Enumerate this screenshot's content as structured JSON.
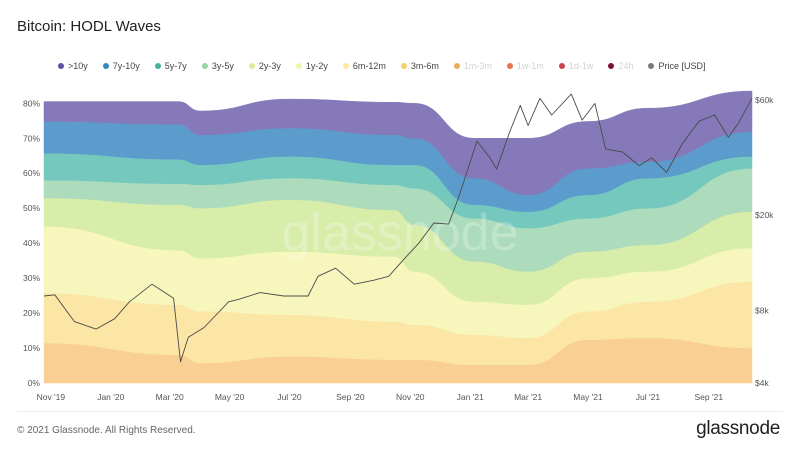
{
  "title": "Bitcoin: HODL Waves",
  "footer": {
    "copyright": "© 2021 Glassnode. All Rights Reserved.",
    "logo": "glassnode"
  },
  "watermark": "glassnode",
  "legend": [
    {
      "label": ">10y",
      "color": "#5e4fa2",
      "enabled": true
    },
    {
      "label": "7y-10y",
      "color": "#3288bd",
      "enabled": true
    },
    {
      "label": "5y-7y",
      "color": "#45b39d",
      "enabled": true
    },
    {
      "label": "3y-5y",
      "color": "#99d4a4",
      "enabled": true
    },
    {
      "label": "2y-3y",
      "color": "#d8ec9c",
      "enabled": true
    },
    {
      "label": "1y-2y",
      "color": "#eef7b0",
      "enabled": true
    },
    {
      "label": "6m-12m",
      "color": "#fbe7a0",
      "enabled": true
    },
    {
      "label": "3m-6m",
      "color": "#f6d16f",
      "enabled": true
    },
    {
      "label": "1m-3m",
      "color": "#f1a95f",
      "enabled": false
    },
    {
      "label": "1w-1m",
      "color": "#e8734f",
      "enabled": false
    },
    {
      "label": "1d-1w",
      "color": "#c7424f",
      "enabled": false
    },
    {
      "label": "24h",
      "color": "#7a0f3a",
      "enabled": false
    },
    {
      "label": "Price [USD]",
      "color": "#7a7a7a",
      "enabled": true
    }
  ],
  "chart_data": {
    "type": "area",
    "stacked": true,
    "title": "Bitcoin: HODL Waves",
    "x_ticks": [
      "Nov '19",
      "Jan '20",
      "Mar '20",
      "May '20",
      "Jul '20",
      "Sep '20",
      "Nov '20",
      "Jan '21",
      "Mar '21",
      "May '21",
      "Jul '21",
      "Sep '21"
    ],
    "x_tick_dates": [
      "2019-11-01",
      "2020-01-01",
      "2020-03-01",
      "2020-05-01",
      "2020-07-01",
      "2020-09-01",
      "2020-11-01",
      "2021-01-01",
      "2021-03-01",
      "2021-05-01",
      "2021-07-01",
      "2021-09-01"
    ],
    "xlim": [
      "2019-10-25",
      "2021-10-15"
    ],
    "y_left": {
      "ticks": [
        "0%",
        "10%",
        "20%",
        "30%",
        "40%",
        "50%",
        "60%",
        "70%",
        "80%"
      ],
      "range": [
        0,
        80
      ]
    },
    "y_right": {
      "scale": "log",
      "ticks": [
        "$4k",
        "$8k",
        "$20k",
        "$60k"
      ],
      "tick_values": [
        4000,
        8000,
        20000,
        60000
      ],
      "range": [
        4000,
        60000
      ]
    },
    "grid": false,
    "legend_position": "top",
    "dates": [
      "2019-10-25",
      "2020-03-10",
      "2020-04-01",
      "2020-07-01",
      "2020-10-15",
      "2020-11-05",
      "2021-01-05",
      "2021-03-01",
      "2021-05-01",
      "2021-07-01",
      "2021-10-15"
    ],
    "series": [
      {
        "name": "3m-6m",
        "fill": "#f9cf93",
        "values": [
          11.4,
          8.1,
          5.7,
          7.6,
          6.7,
          6.7,
          5.2,
          5.2,
          12.4,
          12.9,
          10.0
        ]
      },
      {
        "name": "6m-12m",
        "fill": "#fce6a6",
        "values": [
          14.3,
          14.3,
          14.8,
          11.9,
          10.9,
          10.0,
          8.6,
          7.7,
          8.1,
          10.4,
          19.0
        ]
      },
      {
        "name": "1y-2y",
        "fill": "#f7f6bd",
        "values": [
          19.1,
          15.6,
          15.2,
          18.1,
          18.6,
          15.2,
          9.5,
          9.5,
          9.5,
          8.6,
          9.6
        ]
      },
      {
        "name": "2y-3y",
        "fill": "#d9edaa",
        "values": [
          8.1,
          13.0,
          14.3,
          14.8,
          13.3,
          13.3,
          11.5,
          9.5,
          7.6,
          7.6,
          10.4
        ]
      },
      {
        "name": "3y-5y",
        "fill": "#acdcbb",
        "values": [
          5.1,
          6.0,
          6.7,
          6.2,
          7.2,
          10.5,
          12.3,
          12.4,
          9.5,
          10.5,
          12.4
        ]
      },
      {
        "name": "5y-7y",
        "fill": "#74c8bd",
        "values": [
          7.7,
          7.0,
          5.7,
          6.2,
          5.7,
          6.7,
          3.9,
          4.7,
          6.7,
          8.6,
          3.4
        ]
      },
      {
        "name": "7y-10y",
        "fill": "#5c9ccc",
        "values": [
          9.1,
          10.0,
          8.6,
          8.1,
          8.6,
          7.6,
          7.6,
          4.8,
          7.6,
          4.7,
          7.1
        ]
      },
      {
        "name": ">10y",
        "fill": "#8579b9",
        "values": [
          5.7,
          6.5,
          6.8,
          8.3,
          9.3,
          10.0,
          11.4,
          16.2,
          13.4,
          15.3,
          11.6
        ]
      }
    ],
    "price": {
      "name": "Price [USD]",
      "dates": [
        "2019-10-25",
        "2019-11-05",
        "2019-11-25",
        "2019-12-17",
        "2020-01-05",
        "2020-01-20",
        "2020-02-12",
        "2020-03-05",
        "2020-03-12",
        "2020-03-20",
        "2020-04-05",
        "2020-04-30",
        "2020-05-10",
        "2020-06-01",
        "2020-06-25",
        "2020-07-20",
        "2020-07-30",
        "2020-08-17",
        "2020-09-05",
        "2020-09-25",
        "2020-10-10",
        "2020-10-25",
        "2020-11-10",
        "2020-11-25",
        "2020-12-10",
        "2020-12-20",
        "2021-01-08",
        "2021-01-20",
        "2021-01-28",
        "2021-02-10",
        "2021-02-21",
        "2021-03-01",
        "2021-03-13",
        "2021-03-25",
        "2021-04-14",
        "2021-04-25",
        "2021-05-08",
        "2021-05-19",
        "2021-06-05",
        "2021-06-22",
        "2021-07-05",
        "2021-07-20",
        "2021-08-05",
        "2021-08-22",
        "2021-09-07",
        "2021-09-21",
        "2021-10-01",
        "2021-10-15"
      ],
      "values": [
        9200,
        9300,
        7200,
        6700,
        7400,
        8700,
        10300,
        9000,
        4900,
        6200,
        6800,
        8700,
        8900,
        9500,
        9200,
        9200,
        11100,
        12000,
        10300,
        10700,
        11100,
        13000,
        15300,
        18500,
        18300,
        23500,
        40500,
        35000,
        31000,
        44000,
        57000,
        47000,
        61000,
        52000,
        63500,
        49500,
        58000,
        37500,
        36500,
        32000,
        34500,
        30000,
        39500,
        49000,
        52000,
        42000,
        48000,
        61000
      ]
    }
  }
}
